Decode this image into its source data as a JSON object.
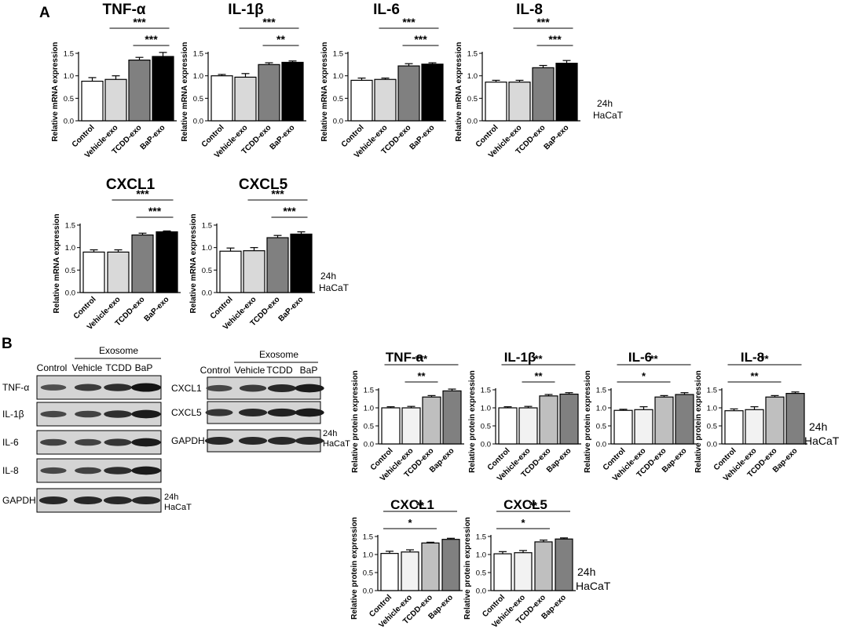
{
  "panels": {
    "a": "A",
    "b": "B"
  },
  "notes": {
    "time": "24h",
    "cell": "HaCaT"
  },
  "blot_left": {
    "group_header": "Exosome",
    "lanes": [
      "Control",
      "Vehicle",
      "TCDD",
      "BaP"
    ],
    "rows": [
      "TNF-α",
      "IL-1β",
      "IL-6",
      "IL-8",
      "GAPDH"
    ],
    "band_intensity": [
      [
        0.55,
        0.7,
        0.8,
        1.0
      ],
      [
        0.6,
        0.65,
        0.8,
        0.95
      ],
      [
        0.65,
        0.65,
        0.75,
        0.95
      ],
      [
        0.6,
        0.65,
        0.8,
        0.95
      ],
      [
        0.85,
        0.85,
        0.85,
        0.85
      ]
    ]
  },
  "blot_right": {
    "group_header": "Exosome",
    "lanes": [
      "Control",
      "Vehicle",
      "TCDD",
      "BaP"
    ],
    "rows": [
      "CXCL1",
      "CXCL5",
      "GAPDH"
    ],
    "band_intensity": [
      [
        0.6,
        0.7,
        0.85,
        0.95
      ],
      [
        0.75,
        0.85,
        0.9,
        0.95
      ],
      [
        0.85,
        0.85,
        0.85,
        0.85
      ]
    ]
  },
  "chart_data": [
    {
      "type": "bar",
      "title": "TNF-α",
      "ylabel": "Relative mRNA expression",
      "categories": [
        "Control",
        "Vehicle-exo",
        "TCDD-exo",
        "BaP-exo"
      ],
      "values": [
        0.88,
        0.92,
        1.35,
        1.43
      ],
      "errors": [
        0.08,
        0.08,
        0.06,
        0.09
      ],
      "ylim": [
        0,
        1.5
      ],
      "yticks": [
        "0.0",
        "0.5",
        "1.0",
        "1.5"
      ],
      "significance": [
        {
          "from": 2,
          "to": 3,
          "label": "***"
        },
        {
          "from": 1,
          "to": 3,
          "label": "***"
        }
      ]
    },
    {
      "type": "bar",
      "title": "IL-1β",
      "ylabel": "Relative mRNA expression",
      "categories": [
        "Control",
        "Vehicle-exo",
        "TCDD-exo",
        "BaP-exo"
      ],
      "values": [
        1.0,
        0.97,
        1.25,
        1.3
      ],
      "errors": [
        0.03,
        0.08,
        0.04,
        0.03
      ],
      "ylim": [
        0,
        1.5
      ],
      "yticks": [
        "0.0",
        "0.5",
        "1.0",
        "1.5"
      ],
      "significance": [
        {
          "from": 2,
          "to": 3,
          "label": "**"
        },
        {
          "from": 1,
          "to": 3,
          "label": "***"
        }
      ]
    },
    {
      "type": "bar",
      "title": "IL-6",
      "ylabel": "Relative mRNA expression",
      "categories": [
        "Control",
        "Vehicle-exo",
        "TCDD-exo",
        "BaP-exo"
      ],
      "values": [
        0.9,
        0.92,
        1.22,
        1.26
      ],
      "errors": [
        0.05,
        0.03,
        0.05,
        0.03
      ],
      "ylim": [
        0,
        1.5
      ],
      "yticks": [
        "0.0",
        "0.5",
        "1.0",
        "1.5"
      ],
      "significance": [
        {
          "from": 2,
          "to": 3,
          "label": "***"
        },
        {
          "from": 1,
          "to": 3,
          "label": "***"
        }
      ]
    },
    {
      "type": "bar",
      "title": "IL-8",
      "ylabel": "Relative mRNA expression",
      "categories": [
        "Control",
        "Vehicle-exo",
        "TCDD-exo",
        "BaP-exo"
      ],
      "values": [
        0.86,
        0.86,
        1.18,
        1.28
      ],
      "errors": [
        0.04,
        0.04,
        0.05,
        0.06
      ],
      "ylim": [
        0,
        1.5
      ],
      "yticks": [
        "0.0",
        "0.5",
        "1.0",
        "1.5"
      ],
      "significance": [
        {
          "from": 2,
          "to": 3,
          "label": "***"
        },
        {
          "from": 1,
          "to": 3,
          "label": "***"
        }
      ]
    },
    {
      "type": "bar",
      "title": "CXCL1",
      "ylabel": "Relative mRNA expression",
      "categories": [
        "Control",
        "Vehicle-exo",
        "TCDD-exo",
        "BaP-exo"
      ],
      "values": [
        0.9,
        0.9,
        1.28,
        1.35
      ],
      "errors": [
        0.05,
        0.05,
        0.04,
        0.02
      ],
      "ylim": [
        0,
        1.5
      ],
      "yticks": [
        "0.0",
        "0.5",
        "1.0",
        "1.5"
      ],
      "significance": [
        {
          "from": 2,
          "to": 3,
          "label": "***"
        },
        {
          "from": 1,
          "to": 3,
          "label": "***"
        }
      ]
    },
    {
      "type": "bar",
      "title": "CXCL5",
      "ylabel": "Relative mRNA expression",
      "categories": [
        "Control",
        "Vehicle-exo",
        "TCDD-exo",
        "BaP-exo"
      ],
      "values": [
        0.92,
        0.93,
        1.22,
        1.3
      ],
      "errors": [
        0.07,
        0.07,
        0.05,
        0.05
      ],
      "ylim": [
        0,
        1.5
      ],
      "yticks": [
        "0.0",
        "0.5",
        "1.0",
        "1.5"
      ],
      "significance": [
        {
          "from": 2,
          "to": 3,
          "label": "***"
        },
        {
          "from": 1,
          "to": 3,
          "label": "***"
        }
      ]
    },
    {
      "type": "bar",
      "title": "TNF-a",
      "ylabel": "Relative protein expression",
      "categories": [
        "Control",
        "Vehicle-exo",
        "TCDD-exo",
        "Bap-exo"
      ],
      "values": [
        1.0,
        1.0,
        1.3,
        1.47
      ],
      "errors": [
        0.03,
        0.04,
        0.04,
        0.05
      ],
      "ylim": [
        0,
        1.5
      ],
      "yticks": [
        "0.0",
        "0.5",
        "1.0",
        "1.5"
      ],
      "significance": [
        {
          "from": 1,
          "to": 2,
          "label": "**"
        },
        {
          "from": 0,
          "to": 3,
          "label": "***"
        }
      ]
    },
    {
      "type": "bar",
      "title": "IL-1β",
      "ylabel": "Relative protein expression",
      "categories": [
        "Control",
        "Vehicle-exo",
        "TCDD-exo",
        "Bap-exo"
      ],
      "values": [
        1.0,
        1.0,
        1.33,
        1.38
      ],
      "errors": [
        0.03,
        0.04,
        0.04,
        0.04
      ],
      "ylim": [
        0,
        1.5
      ],
      "yticks": [
        "0.0",
        "0.5",
        "1.0",
        "1.5"
      ],
      "significance": [
        {
          "from": 1,
          "to": 2,
          "label": "**"
        },
        {
          "from": 0,
          "to": 3,
          "label": "**"
        }
      ]
    },
    {
      "type": "bar",
      "title": "IL-6",
      "ylabel": "Relative protein expression",
      "categories": [
        "Control",
        "Vehicle-exo",
        "TCDD-exo",
        "Bap-exo"
      ],
      "values": [
        0.93,
        0.95,
        1.3,
        1.37
      ],
      "errors": [
        0.03,
        0.08,
        0.04,
        0.05
      ],
      "ylim": [
        0,
        1.5
      ],
      "yticks": [
        "0.0",
        "0.5",
        "1.0",
        "1.5"
      ],
      "significance": [
        {
          "from": 0,
          "to": 2,
          "label": "*"
        },
        {
          "from": 0,
          "to": 3,
          "label": "**"
        }
      ]
    },
    {
      "type": "bar",
      "title": "IL-8",
      "ylabel": "Relative protein expression",
      "categories": [
        "Control",
        "Vehicle-exo",
        "TCDD-exo",
        "Bap-exo"
      ],
      "values": [
        0.92,
        0.95,
        1.3,
        1.4
      ],
      "errors": [
        0.05,
        0.08,
        0.04,
        0.04
      ],
      "ylim": [
        0,
        1.5
      ],
      "yticks": [
        "0.0",
        "0.5",
        "1.0",
        "1.5"
      ],
      "significance": [
        {
          "from": 0,
          "to": 2,
          "label": "**"
        },
        {
          "from": 0,
          "to": 3,
          "label": "**"
        }
      ]
    },
    {
      "type": "bar",
      "title": "CXCL1",
      "ylabel": "Relative protein expression",
      "categories": [
        "Control",
        "Vehicle-exo",
        "TCDD-exo",
        "Bap-exo"
      ],
      "values": [
        1.03,
        1.07,
        1.32,
        1.42
      ],
      "errors": [
        0.06,
        0.06,
        0.02,
        0.03
      ],
      "ylim": [
        0,
        1.5
      ],
      "yticks": [
        "0.0",
        "0.5",
        "1.0",
        "1.5"
      ],
      "significance": [
        {
          "from": 0,
          "to": 2,
          "label": "*"
        },
        {
          "from": 0,
          "to": 3,
          "label": "**"
        }
      ]
    },
    {
      "type": "bar",
      "title": "CXCL5",
      "ylabel": "Relative protein expression",
      "categories": [
        "Control",
        "Vehicle-exo",
        "TCDD-exo",
        "Bap-exo"
      ],
      "values": [
        1.02,
        1.05,
        1.35,
        1.43
      ],
      "errors": [
        0.06,
        0.06,
        0.05,
        0.03
      ],
      "ylim": [
        0,
        1.5
      ],
      "yticks": [
        "0.0",
        "0.5",
        "1.0",
        "1.5"
      ],
      "significance": [
        {
          "from": 0,
          "to": 2,
          "label": "*"
        },
        {
          "from": 0,
          "to": 3,
          "label": "**"
        }
      ]
    }
  ]
}
